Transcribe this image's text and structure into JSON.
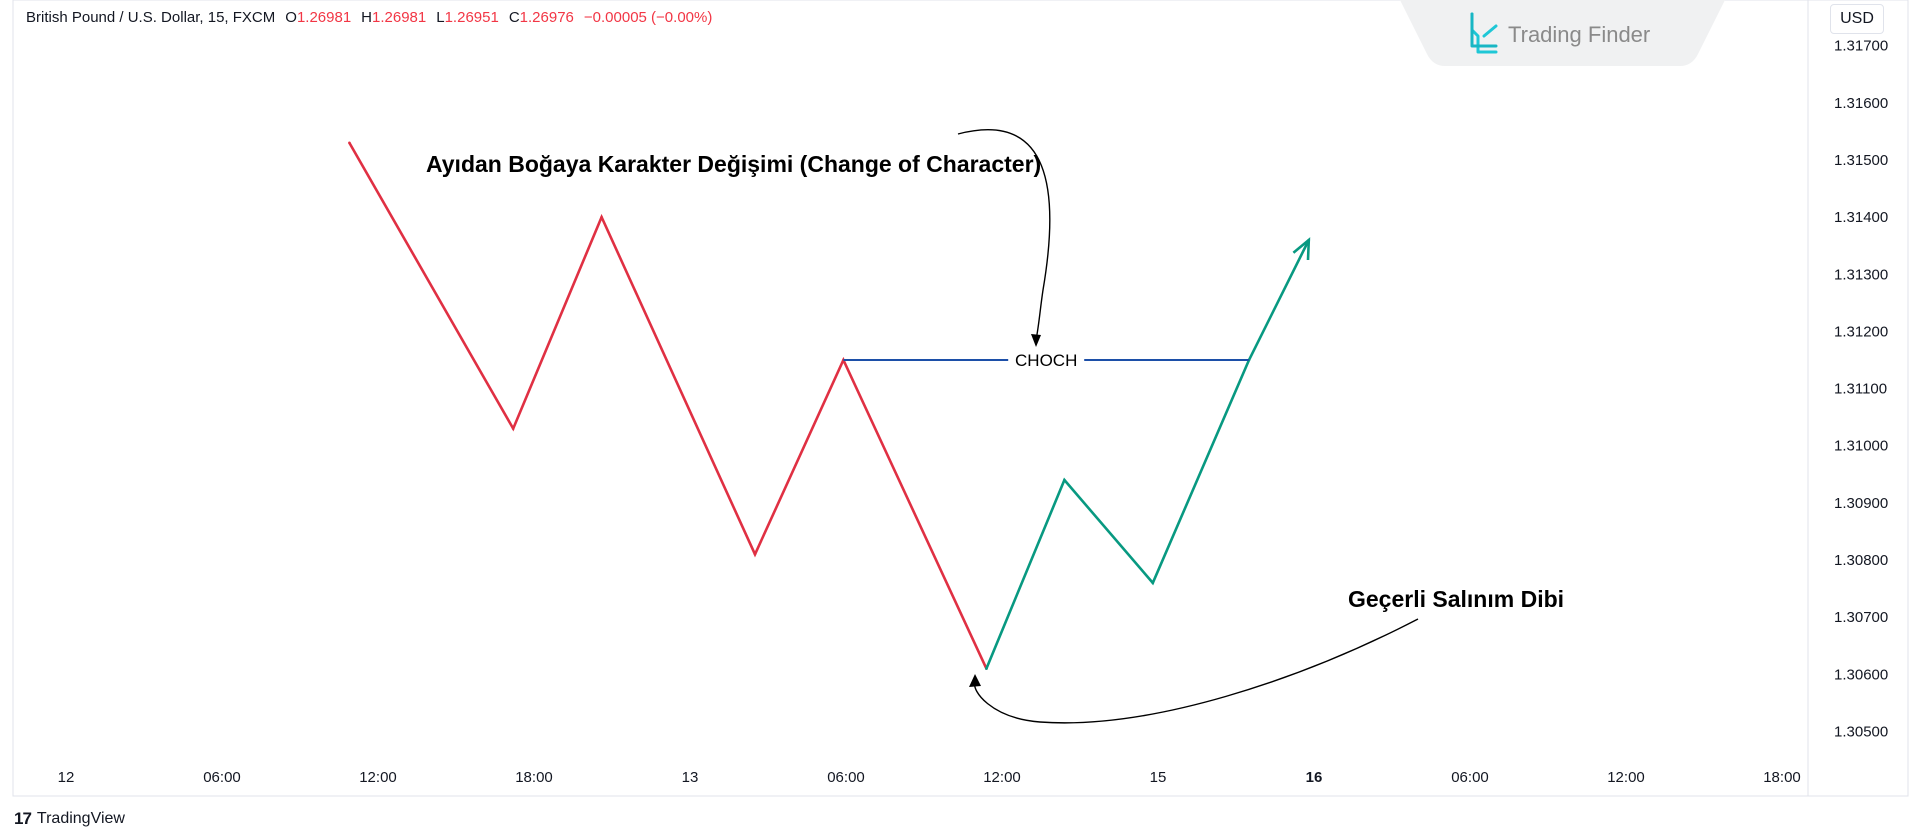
{
  "header": {
    "symbol": "British Pound / U.S. Dollar, 15, FXCM",
    "open_label": "O",
    "open": "1.26981",
    "high_label": "H",
    "high": "1.26981",
    "low_label": "L",
    "low": "1.26951",
    "close_label": "C",
    "close": "1.26976",
    "change": "−0.00005 (−0.00%)"
  },
  "currency_button": "USD",
  "watermark": {
    "brand": "Trading Finder"
  },
  "footer": {
    "logo_mark": "17",
    "brand": "TradingView"
  },
  "colors": {
    "bearish": "#e03043",
    "bullish": "#089981",
    "choch_line": "#1c4fa8",
    "price_text": "#f23645"
  },
  "chart_data": {
    "type": "line",
    "y_axis": {
      "ticks": [
        "1.31700",
        "1.31600",
        "1.31500",
        "1.31400",
        "1.31300",
        "1.31200",
        "1.31100",
        "1.31000",
        "1.30900",
        "1.30800",
        "1.30700",
        "1.30600",
        "1.30500"
      ],
      "ylim": [
        1.3045,
        1.3178
      ]
    },
    "x_axis": {
      "ticks": [
        {
          "label": "12",
          "bold": false
        },
        {
          "label": "06:00",
          "bold": false
        },
        {
          "label": "12:00",
          "bold": false
        },
        {
          "label": "18:00",
          "bold": false
        },
        {
          "label": "13",
          "bold": false
        },
        {
          "label": "06:00",
          "bold": false
        },
        {
          "label": "12:00",
          "bold": false
        },
        {
          "label": "15",
          "bold": false
        },
        {
          "label": "16",
          "bold": true
        },
        {
          "label": "06:00",
          "bold": false
        },
        {
          "label": "12:00",
          "bold": false
        },
        {
          "label": "18:00",
          "bold": false
        }
      ],
      "tick_hours": [
        0,
        6,
        12,
        18,
        24,
        30,
        36,
        42,
        48,
        54,
        60,
        66
      ]
    },
    "series": [
      {
        "color": "#e03043",
        "points": [
          [
            10.9,
            1.3153
          ],
          [
            17.2,
            1.3103
          ],
          [
            20.6,
            1.314
          ],
          [
            26.5,
            1.3081
          ],
          [
            29.9,
            1.3115
          ],
          [
            35.4,
            1.3061
          ]
        ]
      },
      {
        "color": "#089981",
        "points": [
          [
            35.4,
            1.3061
          ],
          [
            38.4,
            1.3094
          ],
          [
            41.8,
            1.3076
          ],
          [
            45.5,
            1.3115
          ],
          [
            47.8,
            1.3136
          ]
        ]
      }
    ],
    "choch": {
      "label": "CHOCH",
      "price": 1.3115,
      "x_start": 29.9,
      "x_end": 45.5
    },
    "annotations": [
      {
        "text": "Ayıdan Boğaya Karakter Değişimi (Change of Character)"
      },
      {
        "text": "Geçerli Salınım Dibi"
      }
    ]
  }
}
